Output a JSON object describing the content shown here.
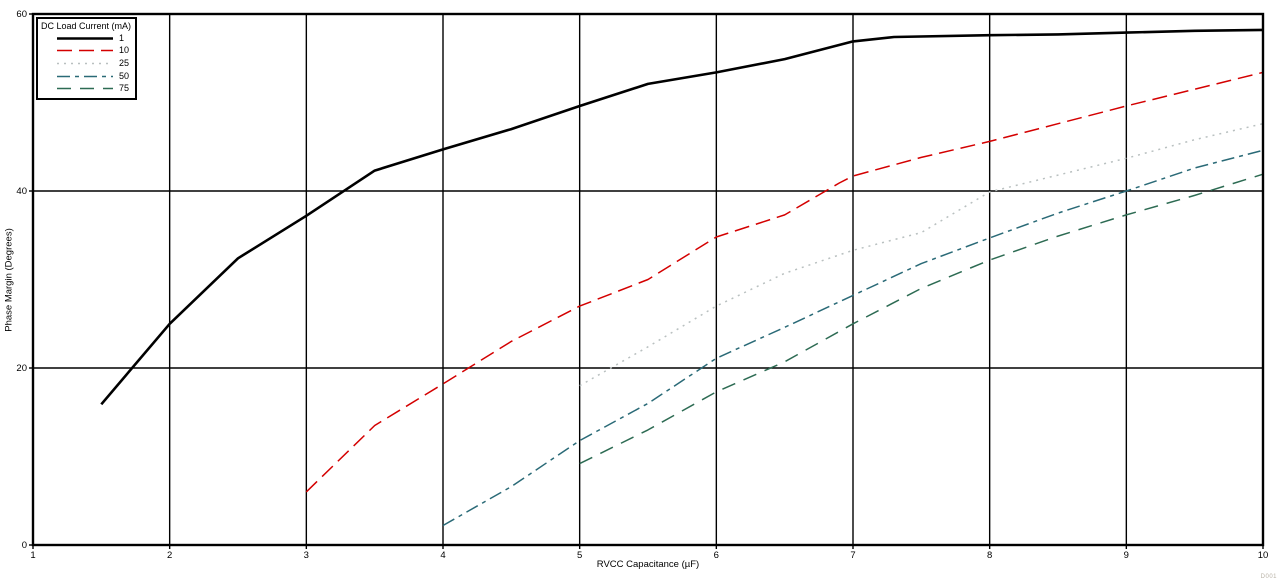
{
  "figure": {
    "watermark": "D001"
  },
  "chart_data": {
    "type": "line",
    "title": "",
    "xlabel": "RVCC Capacitance (µF)",
    "ylabel": "Phase Margin (Degrees)",
    "xlim": [
      1,
      10
    ],
    "ylim": [
      0,
      60
    ],
    "x_ticks": [
      "1",
      "2",
      "3",
      "4",
      "5",
      "6",
      "7",
      "8",
      "9",
      "10"
    ],
    "y_ticks": [
      "0",
      "20",
      "40",
      "60"
    ],
    "grid": true,
    "legend": {
      "title": "DC Load Current (mA)",
      "position": "top-left"
    },
    "series": [
      {
        "name": "1",
        "color": "#000000",
        "width": 2.6,
        "dash": "",
        "points": [
          [
            1.5,
            15.9
          ],
          [
            2,
            25
          ],
          [
            2.5,
            32.4
          ],
          [
            3,
            37.2
          ],
          [
            3.5,
            42.3
          ],
          [
            4,
            44.7
          ],
          [
            4.5,
            47
          ],
          [
            5,
            49.6
          ],
          [
            5.5,
            52.1
          ],
          [
            6,
            53.4
          ],
          [
            6.5,
            54.9
          ],
          [
            7,
            56.9
          ],
          [
            7.3,
            57.4
          ],
          [
            8,
            57.6
          ],
          [
            8.5,
            57.7
          ],
          [
            9,
            57.9
          ],
          [
            9.5,
            58.1
          ],
          [
            10,
            58.2
          ]
        ]
      },
      {
        "name": "10",
        "color": "#d40000",
        "width": 1.5,
        "dash": "15,7",
        "points": [
          [
            3,
            6
          ],
          [
            3.5,
            13.5
          ],
          [
            4,
            18.2
          ],
          [
            4.5,
            23
          ],
          [
            5,
            27
          ],
          [
            5.5,
            30
          ],
          [
            6,
            34.8
          ],
          [
            6.5,
            37.3
          ],
          [
            6.9,
            40.9
          ],
          [
            7,
            41.7
          ],
          [
            7.5,
            43.8
          ],
          [
            8,
            45.6
          ],
          [
            8.5,
            47.6
          ],
          [
            9,
            49.6
          ],
          [
            9.5,
            51.5
          ],
          [
            10,
            53.4
          ]
        ]
      },
      {
        "name": "25",
        "color": "#b9c0c0",
        "width": 1.5,
        "dash": "2,5",
        "points": [
          [
            5,
            18
          ],
          [
            5.5,
            22.4
          ],
          [
            6,
            27
          ],
          [
            6.5,
            30.7
          ],
          [
            7,
            33.3
          ],
          [
            7.5,
            35.3
          ],
          [
            8,
            39.9
          ],
          [
            8.5,
            41.8
          ],
          [
            9,
            43.7
          ],
          [
            9.5,
            45.8
          ],
          [
            10,
            47.6
          ]
        ]
      },
      {
        "name": "50",
        "color": "#2a6a77",
        "width": 1.5,
        "dash": "13,5,4,5",
        "points": [
          [
            4,
            2.2
          ],
          [
            4.5,
            6.6
          ],
          [
            5,
            11.8
          ],
          [
            5.5,
            16
          ],
          [
            6,
            21.1
          ],
          [
            6.5,
            24.6
          ],
          [
            7,
            28.2
          ],
          [
            7.5,
            31.8
          ],
          [
            8,
            34.7
          ],
          [
            8.5,
            37.5
          ],
          [
            9,
            40
          ],
          [
            9.5,
            42.6
          ],
          [
            10,
            44.6
          ]
        ]
      },
      {
        "name": "75",
        "color": "#2d6b53",
        "width": 1.5,
        "dash": "14,9",
        "points": [
          [
            5,
            9.2
          ],
          [
            5.5,
            13
          ],
          [
            6,
            17.3
          ],
          [
            6.5,
            20.7
          ],
          [
            7,
            25
          ],
          [
            7.5,
            29
          ],
          [
            8,
            32.2
          ],
          [
            8.5,
            34.9
          ],
          [
            9,
            37.3
          ],
          [
            9.5,
            39.5
          ],
          [
            10,
            41.9
          ]
        ]
      }
    ]
  }
}
